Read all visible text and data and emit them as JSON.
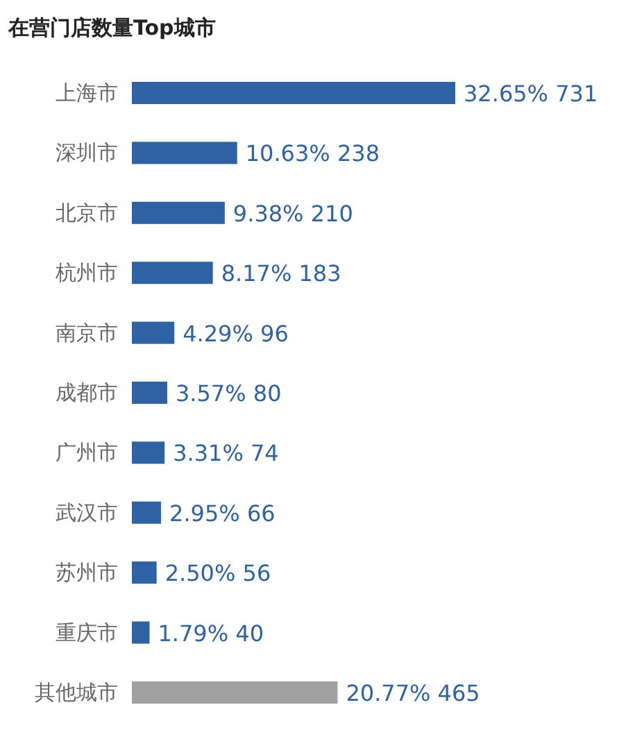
{
  "chart_data": {
    "type": "bar",
    "orientation": "horizontal",
    "title": "在营门店数量Top城市",
    "categories": [
      "上海市",
      "深圳市",
      "北京市",
      "杭州市",
      "南京市",
      "成都市",
      "广州市",
      "武汉市",
      "苏州市",
      "重庆市",
      "其他城市"
    ],
    "values": [
      731,
      238,
      210,
      183,
      96,
      80,
      74,
      66,
      56,
      40,
      465
    ],
    "colors": [
      "#2e62a5",
      "#2e62a5",
      "#2e62a5",
      "#2e62a5",
      "#2e62a5",
      "#2e62a5",
      "#2e62a5",
      "#2e62a5",
      "#2e62a5",
      "#2e62a5",
      "#a0a0a0"
    ],
    "value_labels": [
      "32.65% 731",
      "10.63% 238",
      "9.38% 210",
      "8.17% 183",
      "4.29% 96",
      "3.57% 80",
      "3.31% 74",
      "2.95% 66",
      "2.50% 56",
      "1.79% 40",
      "20.77% 465"
    ]
  }
}
